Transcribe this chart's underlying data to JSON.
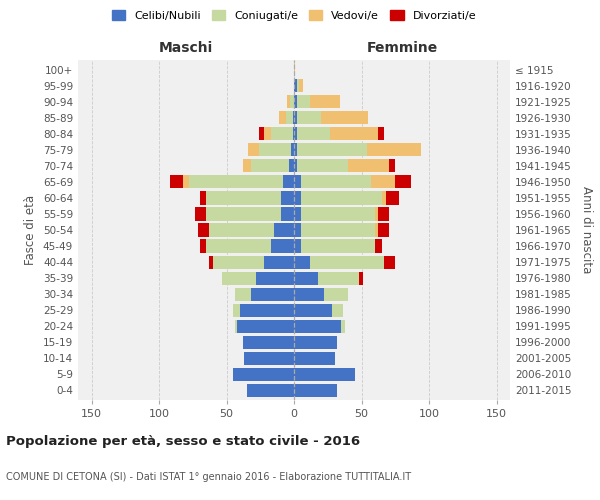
{
  "age_groups": [
    "0-4",
    "5-9",
    "10-14",
    "15-19",
    "20-24",
    "25-29",
    "30-34",
    "35-39",
    "40-44",
    "45-49",
    "50-54",
    "55-59",
    "60-64",
    "65-69",
    "70-74",
    "75-79",
    "80-84",
    "85-89",
    "90-94",
    "95-99",
    "100+"
  ],
  "birth_years": [
    "2011-2015",
    "2006-2010",
    "2001-2005",
    "1996-2000",
    "1991-1995",
    "1986-1990",
    "1981-1985",
    "1976-1980",
    "1971-1975",
    "1966-1970",
    "1961-1965",
    "1956-1960",
    "1951-1955",
    "1946-1950",
    "1941-1945",
    "1936-1940",
    "1931-1935",
    "1926-1930",
    "1921-1925",
    "1916-1920",
    "≤ 1915"
  ],
  "colors": {
    "celibi": "#4472C4",
    "coniugati": "#c5d9a0",
    "vedovi": "#f0c070",
    "divorziati": "#CC0000"
  },
  "maschi": {
    "celibi": [
      35,
      45,
      37,
      38,
      42,
      40,
      32,
      28,
      22,
      17,
      15,
      10,
      10,
      8,
      4,
      2,
      1,
      1,
      0,
      0,
      0
    ],
    "coniugati": [
      0,
      0,
      0,
      0,
      2,
      5,
      12,
      25,
      38,
      48,
      48,
      55,
      55,
      70,
      28,
      24,
      16,
      5,
      3,
      0,
      0
    ],
    "vedovi": [
      0,
      0,
      0,
      0,
      0,
      0,
      0,
      0,
      0,
      0,
      0,
      0,
      0,
      4,
      6,
      8,
      5,
      5,
      2,
      0,
      0
    ],
    "divorziati": [
      0,
      0,
      0,
      0,
      0,
      0,
      0,
      0,
      3,
      5,
      8,
      8,
      5,
      10,
      0,
      0,
      4,
      0,
      0,
      0,
      0
    ]
  },
  "femmine": {
    "nubili": [
      32,
      45,
      30,
      32,
      35,
      28,
      22,
      18,
      12,
      5,
      5,
      5,
      5,
      5,
      2,
      2,
      2,
      2,
      2,
      2,
      0
    ],
    "coniugate": [
      0,
      0,
      0,
      0,
      3,
      8,
      18,
      30,
      55,
      55,
      55,
      55,
      60,
      52,
      38,
      52,
      25,
      18,
      10,
      2,
      0
    ],
    "vedove": [
      0,
      0,
      0,
      0,
      0,
      0,
      0,
      0,
      0,
      0,
      2,
      2,
      3,
      18,
      30,
      40,
      35,
      35,
      22,
      3,
      1
    ],
    "divorziate": [
      0,
      0,
      0,
      0,
      0,
      0,
      0,
      3,
      8,
      5,
      8,
      8,
      10,
      12,
      5,
      0,
      5,
      0,
      0,
      0,
      0
    ]
  },
  "title": "Popolazione per età, sesso e stato civile - 2016",
  "subtitle": "COMUNE DI CETONA (SI) - Dati ISTAT 1° gennaio 2016 - Elaborazione TUTTITALIA.IT",
  "xlabel_left": "Maschi",
  "xlabel_right": "Femmine",
  "ylabel_left": "Fasce di età",
  "ylabel_right": "Anni di nascita",
  "xlim": 160,
  "legend_labels": [
    "Celibi/Nubili",
    "Coniugati/e",
    "Vedovi/e",
    "Divorziati/e"
  ],
  "bg_color": "#ffffff",
  "plot_bg_color": "#f0f0f0",
  "grid_color": "#cccccc"
}
